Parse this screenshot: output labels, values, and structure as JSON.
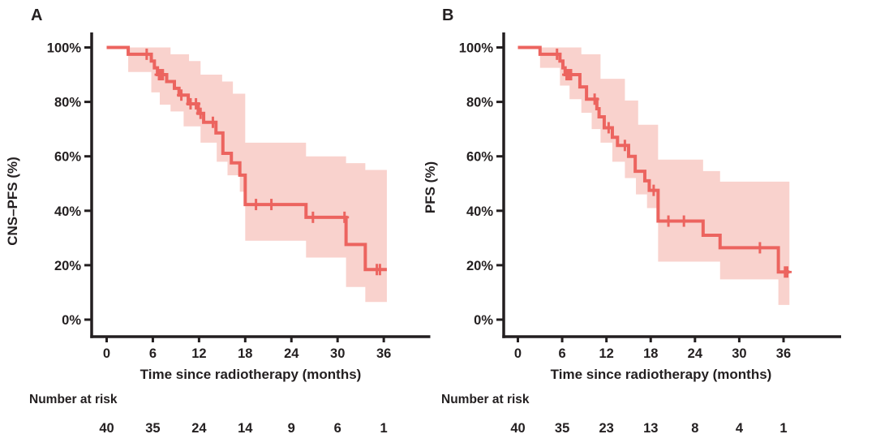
{
  "colors": {
    "line": "#ec645f",
    "band": "#f9d2cd",
    "axis": "#231f20",
    "text": "#231f20"
  },
  "chart_data": [
    {
      "type": "line",
      "subtype": "kaplan-meier-step-curve-with-confidence-band",
      "panel_label": "A",
      "ylabel": "CNS–PFS (%)",
      "xlabel": "Time since radiotherapy (months)",
      "ytick_labels": [
        "100%",
        "80%",
        "60%",
        "40%",
        "20%",
        "0%"
      ],
      "ytick_values": [
        100,
        80,
        60,
        40,
        20,
        0
      ],
      "xtick_values": [
        0,
        6,
        12,
        18,
        24,
        30,
        36
      ],
      "xlim": [
        0,
        42
      ],
      "ylim": [
        0,
        100
      ],
      "grid": "off",
      "legend": "none",
      "steps": [
        [
          0,
          100
        ],
        [
          2.8,
          97.5
        ],
        [
          5.8,
          95
        ],
        [
          6.2,
          92.5
        ],
        [
          6.6,
          90
        ],
        [
          7.8,
          87.5
        ],
        [
          8.8,
          85
        ],
        [
          9.4,
          82.5
        ],
        [
          10.6,
          79.3
        ],
        [
          11.9,
          75.8
        ],
        [
          12.6,
          72.5
        ],
        [
          14.2,
          68.6
        ],
        [
          15.1,
          61.1
        ],
        [
          16.2,
          57.6
        ],
        [
          17.3,
          53.1
        ],
        [
          18,
          42.3
        ],
        [
          25.9,
          37.6
        ],
        [
          31.1,
          27.6
        ],
        [
          33.6,
          18.4
        ],
        [
          36.4,
          18.4
        ]
      ],
      "censors": [
        [
          5.2,
          97.5
        ],
        [
          6.8,
          90
        ],
        [
          7.05,
          90
        ],
        [
          7.3,
          90
        ],
        [
          9.7,
          82.5
        ],
        [
          10.9,
          79.3
        ],
        [
          11.6,
          79.3
        ],
        [
          12.2,
          75.8
        ],
        [
          13.8,
          72.5
        ],
        [
          19.4,
          42.3
        ],
        [
          21.4,
          42.3
        ],
        [
          26.8,
          37.6
        ],
        [
          30.9,
          37.6
        ],
        [
          35.1,
          18.4
        ],
        [
          35.5,
          18.4
        ]
      ],
      "band_upper": [
        [
          2.8,
          100
        ],
        [
          8.3,
          97.5
        ],
        [
          10.7,
          95
        ],
        [
          12.2,
          90
        ],
        [
          15,
          87.5
        ],
        [
          16.4,
          83
        ],
        [
          18,
          65
        ],
        [
          25.9,
          60
        ],
        [
          31.1,
          57.5
        ],
        [
          33.6,
          55
        ],
        [
          36.4,
          55
        ]
      ],
      "band_lower": [
        [
          2.8,
          91
        ],
        [
          5.8,
          83.5
        ],
        [
          6.9,
          79
        ],
        [
          8.3,
          76.5
        ],
        [
          10,
          71
        ],
        [
          12.2,
          65
        ],
        [
          14.3,
          58
        ],
        [
          15.7,
          53
        ],
        [
          17.3,
          47
        ],
        [
          18,
          29
        ],
        [
          25.9,
          22.8
        ],
        [
          31.1,
          12
        ],
        [
          33.6,
          6.5
        ],
        [
          36.4,
          6.5
        ]
      ],
      "risk_label": "Number at risk",
      "risk_times": [
        0,
        6,
        12,
        18,
        24,
        30,
        36
      ],
      "risk_counts": [
        40,
        35,
        24,
        14,
        9,
        6,
        1
      ]
    },
    {
      "type": "line",
      "subtype": "kaplan-meier-step-curve-with-confidence-band",
      "panel_label": "B",
      "ylabel": "PFS (%)",
      "xlabel": "Time since radiotherapy (months)",
      "ytick_labels": [
        "100%",
        "80%",
        "60%",
        "40%",
        "20%",
        "0%"
      ],
      "ytick_values": [
        100,
        80,
        60,
        40,
        20,
        0
      ],
      "xtick_values": [
        0,
        6,
        12,
        18,
        24,
        30,
        36
      ],
      "xlim": [
        0,
        42
      ],
      "ylim": [
        0,
        100
      ],
      "grid": "off",
      "legend": "none",
      "steps": [
        [
          0,
          100
        ],
        [
          3,
          97.5
        ],
        [
          5.7,
          95
        ],
        [
          6.1,
          92.5
        ],
        [
          6.4,
          90
        ],
        [
          8.4,
          85.5
        ],
        [
          9.3,
          81
        ],
        [
          10.7,
          77.5
        ],
        [
          11,
          74.5
        ],
        [
          11.7,
          70.5
        ],
        [
          12.8,
          67
        ],
        [
          13.5,
          64
        ],
        [
          15,
          60
        ],
        [
          15.9,
          54.5
        ],
        [
          17.2,
          51
        ],
        [
          17.8,
          47.5
        ],
        [
          19,
          36.2
        ],
        [
          25.1,
          31
        ],
        [
          27.4,
          26.4
        ],
        [
          35.3,
          17.5
        ],
        [
          36.8,
          17.5
        ]
      ],
      "censors": [
        [
          5.3,
          97.5
        ],
        [
          6.6,
          90
        ],
        [
          6.9,
          90
        ],
        [
          7.2,
          90
        ],
        [
          10.4,
          81
        ],
        [
          12.3,
          70.5
        ],
        [
          14.5,
          64
        ],
        [
          18.4,
          47.5
        ],
        [
          20.4,
          36.2
        ],
        [
          22.5,
          36.2
        ],
        [
          32.8,
          26.4
        ],
        [
          36.2,
          17.5
        ],
        [
          36.5,
          17.5
        ]
      ],
      "band_upper": [
        [
          3,
          100
        ],
        [
          8.6,
          97.5
        ],
        [
          11.2,
          88.5
        ],
        [
          14.5,
          80.5
        ],
        [
          16.3,
          71.6
        ],
        [
          19,
          58.8
        ],
        [
          25.1,
          54.6
        ],
        [
          27.4,
          50.7
        ],
        [
          36.8,
          50.7
        ]
      ],
      "band_lower": [
        [
          3,
          92.5
        ],
        [
          5.7,
          86
        ],
        [
          7,
          81
        ],
        [
          8.6,
          76
        ],
        [
          10,
          70
        ],
        [
          11.2,
          65
        ],
        [
          12.8,
          58
        ],
        [
          14.5,
          52
        ],
        [
          16,
          46
        ],
        [
          17.5,
          41
        ],
        [
          19,
          21.3
        ],
        [
          27.4,
          14.8
        ],
        [
          35.3,
          5.4
        ],
        [
          36.8,
          5.4
        ]
      ],
      "risk_label": "Number at risk",
      "risk_times": [
        0,
        6,
        12,
        18,
        24,
        30,
        36
      ],
      "risk_counts": [
        40,
        35,
        23,
        13,
        8,
        4,
        1
      ]
    }
  ]
}
